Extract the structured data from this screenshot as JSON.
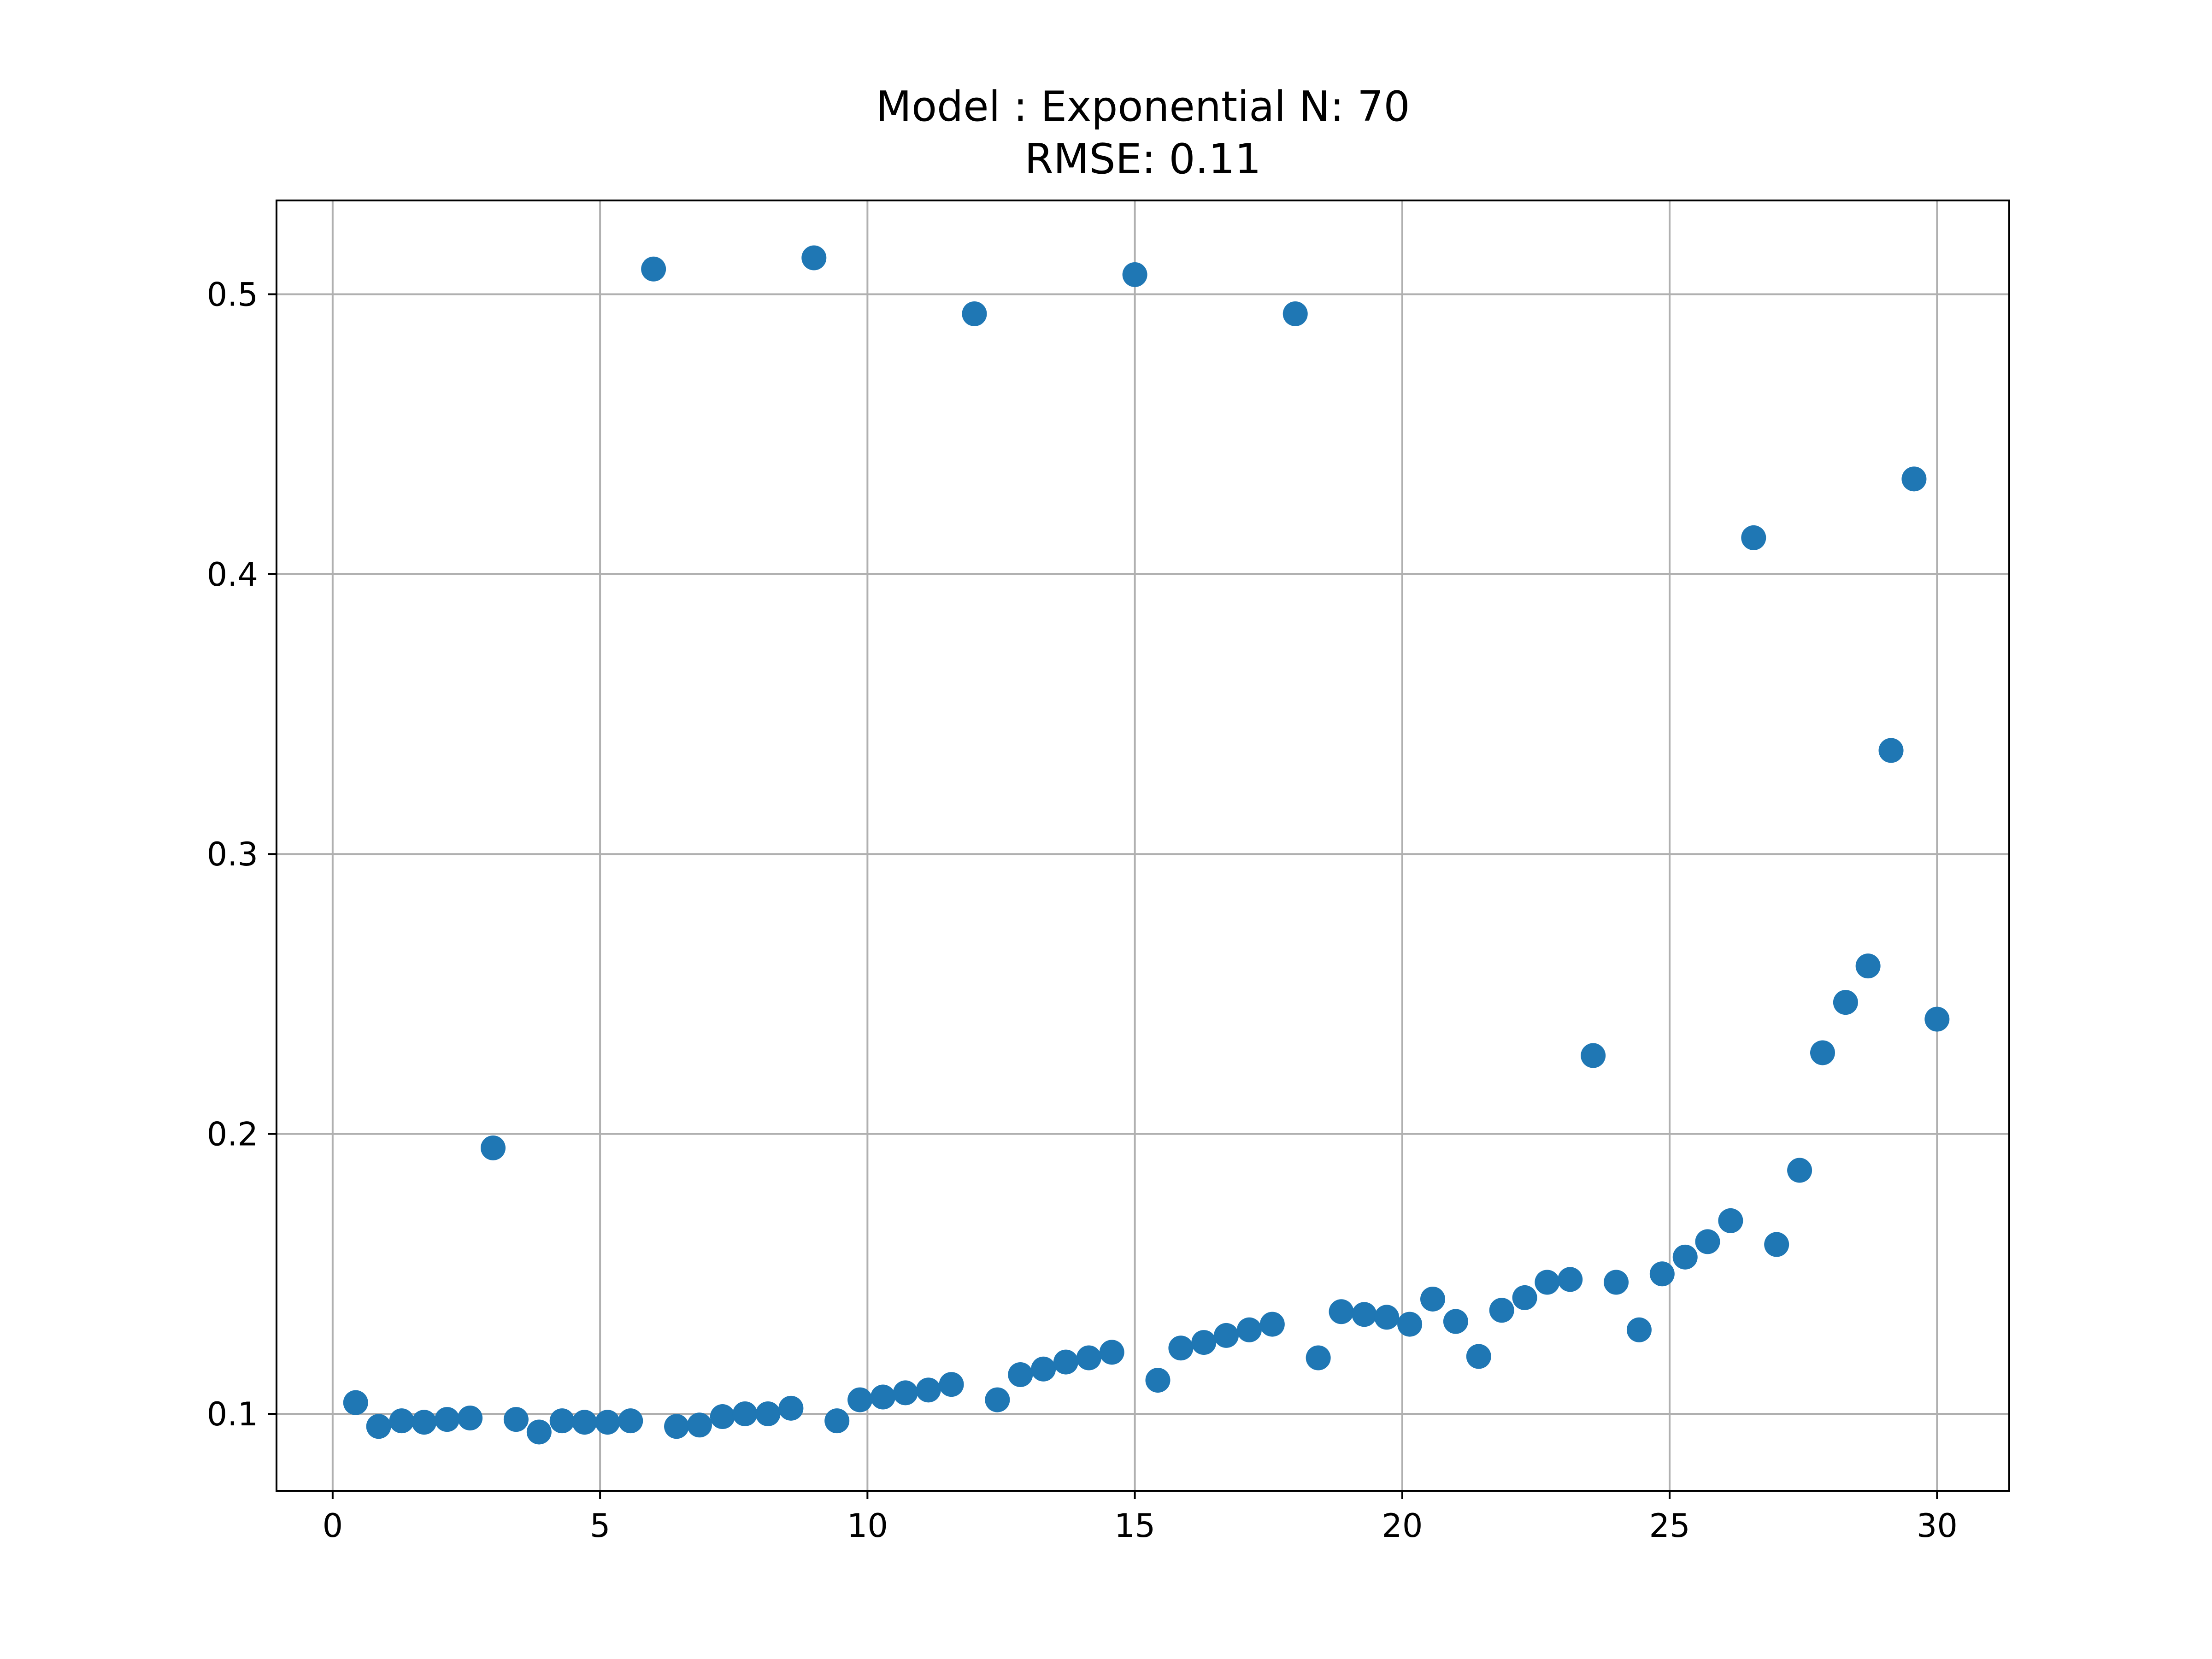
{
  "chart_data": {
    "type": "scatter",
    "title": "Model : Exponential N: 70",
    "subtitle": "RMSE: 0.11",
    "xlabel": "",
    "ylabel": "",
    "xlim": [
      -1.05,
      31.35
    ],
    "ylim": [
      0.0725,
      0.5335
    ],
    "xticks": [
      0,
      5,
      10,
      15,
      20,
      25,
      30
    ],
    "xtick_labels": [
      "0",
      "5",
      "10",
      "15",
      "20",
      "25",
      "30"
    ],
    "yticks": [
      0.1,
      0.2,
      0.3,
      0.4,
      0.5
    ],
    "ytick_labels": [
      "0.1",
      "0.2",
      "0.3",
      "0.4",
      "0.5"
    ],
    "grid": true,
    "legend": "none",
    "colors": {
      "points": "#1f77b4",
      "grid": "#b0b0b0",
      "axes": "#000000"
    },
    "series": [
      {
        "x": [
          0.43,
          0.86,
          1.29,
          1.71,
          2.14,
          2.57,
          3.0,
          3.43,
          3.86,
          4.29,
          4.71,
          5.14,
          5.57,
          6.0,
          6.43,
          6.86,
          7.29,
          7.71,
          8.14,
          8.57,
          9.0,
          9.43,
          9.86,
          10.29,
          10.71,
          11.14,
          11.57,
          12.0,
          12.43,
          12.86,
          13.29,
          13.71,
          14.14,
          14.57,
          15.0,
          15.43,
          15.86,
          16.29,
          16.71,
          17.14,
          17.57,
          18.0,
          18.43,
          18.86,
          19.29,
          19.71,
          20.14,
          20.57,
          21.0,
          21.43,
          21.86,
          22.29,
          22.71,
          23.14,
          23.57,
          24.0,
          24.43,
          24.86,
          25.29,
          25.71,
          26.14,
          26.57,
          27.0,
          27.43,
          27.86,
          28.29,
          28.71,
          29.14,
          29.57,
          30.0
        ],
        "y": [
          0.104,
          0.0955,
          0.0975,
          0.097,
          0.098,
          0.0985,
          0.195,
          0.098,
          0.0935,
          0.0975,
          0.097,
          0.097,
          0.0975,
          0.509,
          0.0955,
          0.096,
          0.099,
          0.1,
          0.1,
          0.102,
          0.513,
          0.0975,
          0.105,
          0.106,
          0.1075,
          0.1085,
          0.1105,
          0.493,
          0.105,
          0.114,
          0.116,
          0.1185,
          0.12,
          0.122,
          0.507,
          0.112,
          0.1235,
          0.1255,
          0.128,
          0.13,
          0.132,
          0.493,
          0.12,
          0.1365,
          0.1355,
          0.1345,
          0.132,
          0.141,
          0.133,
          0.1205,
          0.137,
          0.1415,
          0.147,
          0.148,
          0.228,
          0.147,
          0.13,
          0.15,
          0.156,
          0.1615,
          0.169,
          0.413,
          0.1605,
          0.187,
          0.229,
          0.247,
          0.26,
          0.337,
          0.434,
          0.241
        ]
      }
    ]
  }
}
